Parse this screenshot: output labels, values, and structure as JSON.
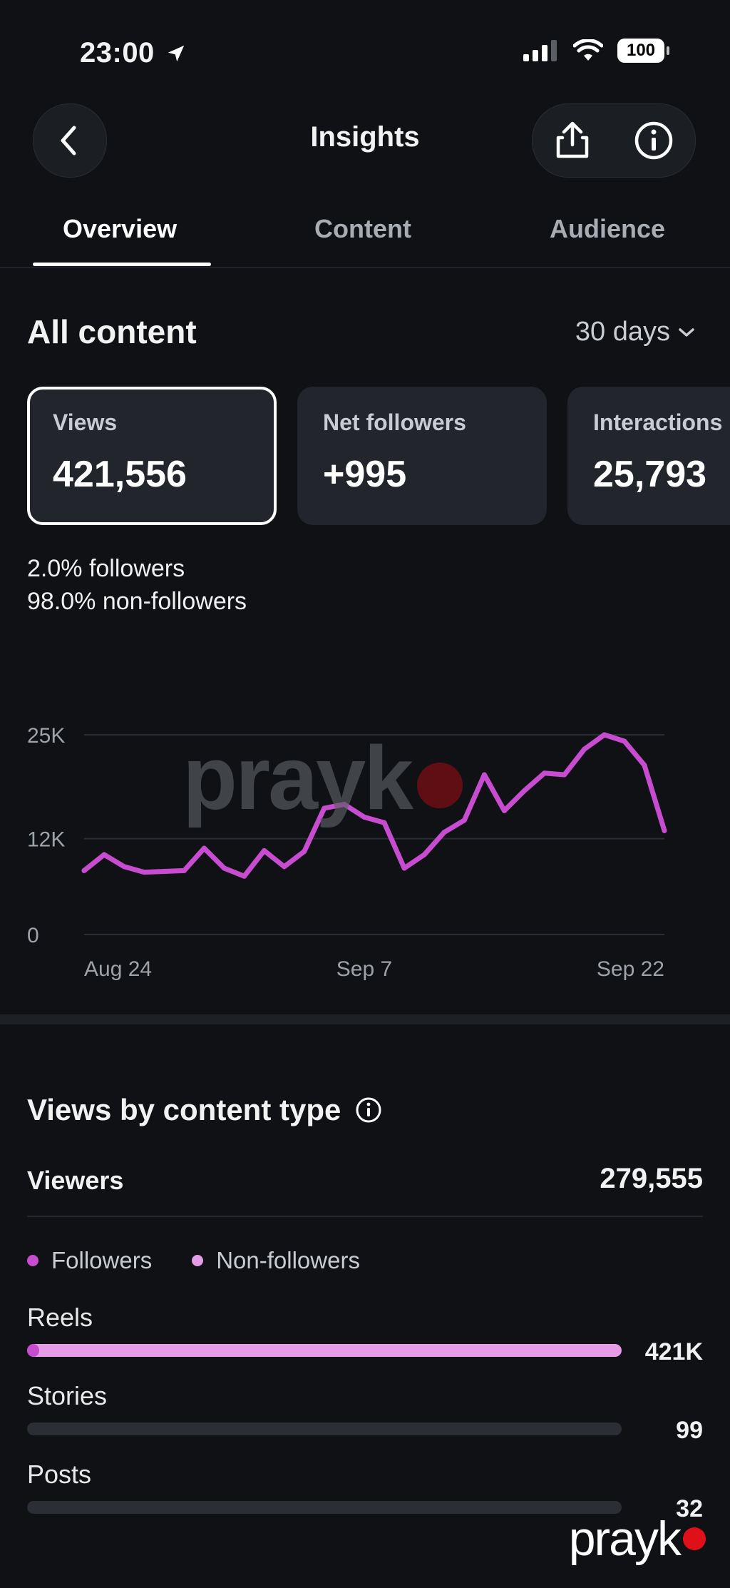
{
  "status": {
    "time": "23:00",
    "battery": "100"
  },
  "header": {
    "title": "Insights"
  },
  "tabs": [
    {
      "label": "Overview",
      "active": true
    },
    {
      "label": "Content",
      "active": false
    },
    {
      "label": "Audience",
      "active": false
    }
  ],
  "section": {
    "title": "All content",
    "range": "30 days"
  },
  "cards": [
    {
      "label": "Views",
      "value": "421,556",
      "active": true
    },
    {
      "label": "Net followers",
      "value": "+995",
      "active": false
    },
    {
      "label": "Interactions",
      "value": "25,793",
      "active": false
    }
  ],
  "split": {
    "followers": "2.0% followers",
    "non_followers": "98.0% non-followers"
  },
  "chart_data": {
    "type": "line",
    "x_labels": [
      "Aug 24",
      "Sep 7",
      "Sep 22"
    ],
    "y_ticks": [
      "25K",
      "12K",
      "0"
    ],
    "ylim": [
      0,
      25000
    ],
    "grid": true,
    "color": "#c84ccf",
    "values": [
      8000,
      10000,
      8500,
      7800,
      7900,
      8000,
      10800,
      8300,
      7300,
      10500,
      8500,
      10400,
      15800,
      16300,
      14700,
      14000,
      8300,
      10000,
      12800,
      14300,
      20000,
      15500,
      18000,
      20200,
      20000,
      23200,
      25000,
      24200,
      21200,
      13000
    ]
  },
  "vbct": {
    "title": "Views by content type",
    "viewers_label": "Viewers",
    "viewers_value": "279,555",
    "legend": [
      {
        "label": "Followers",
        "color": "#c84ccf"
      },
      {
        "label": "Non-followers",
        "color": "#e59be6"
      }
    ],
    "rows": [
      {
        "label": "Reels",
        "value": "421K",
        "followers_frac": 0.02,
        "total_frac": 1.0
      },
      {
        "label": "Stories",
        "value": "99",
        "followers_frac": 0.0,
        "total_frac": 0.0
      },
      {
        "label": "Posts",
        "value": "32",
        "followers_frac": 0.0,
        "total_frac": 0.0
      }
    ]
  },
  "watermark": {
    "center": "prayk",
    "corner": "prayk"
  }
}
